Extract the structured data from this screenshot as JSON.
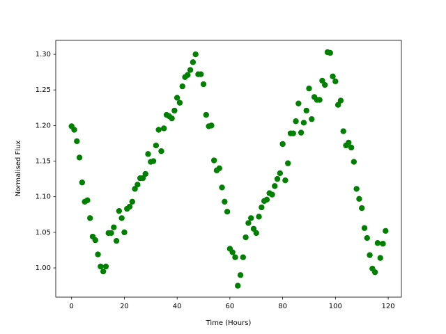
{
  "chart_data": {
    "type": "scatter",
    "xlabel": "Time (Hours)",
    "ylabel": "Normalised Flux",
    "x": [
      0,
      1,
      2,
      3,
      4,
      5,
      6,
      7,
      8,
      9,
      10,
      11,
      12,
      13,
      14,
      15,
      16,
      17,
      18,
      19,
      20,
      21,
      22,
      23,
      24,
      25,
      26,
      27,
      28,
      29,
      30,
      31,
      32,
      33,
      34,
      35,
      36,
      37,
      38,
      39,
      40,
      41,
      42,
      43,
      44,
      45,
      46,
      47,
      48,
      49,
      50,
      51,
      52,
      53,
      54,
      55,
      56,
      57,
      58,
      59,
      60,
      61,
      62,
      63,
      64,
      65,
      66,
      67,
      68,
      69,
      70,
      71,
      72,
      73,
      74,
      75,
      76,
      77,
      78,
      79,
      80,
      81,
      82,
      83,
      84,
      85,
      86,
      87,
      88,
      89,
      90,
      91,
      92,
      93,
      94,
      95,
      96,
      97,
      98,
      99,
      100,
      101,
      102,
      103,
      104,
      105,
      106,
      107,
      108,
      109,
      110,
      111,
      112,
      113,
      114,
      115,
      116,
      117,
      118,
      119
    ],
    "values": [
      1.199,
      1.194,
      1.178,
      1.155,
      1.12,
      1.093,
      1.095,
      1.07,
      1.044,
      1.039,
      1.019,
      1.002,
      0.995,
      1.002,
      1.049,
      1.049,
      1.057,
      1.038,
      1.08,
      1.07,
      1.05,
      1.083,
      1.086,
      1.093,
      1.111,
      1.117,
      1.126,
      1.126,
      1.132,
      1.16,
      1.149,
      1.15,
      1.172,
      1.194,
      1.164,
      1.196,
      1.215,
      1.213,
      1.21,
      1.221,
      1.239,
      1.232,
      1.255,
      1.268,
      1.271,
      1.278,
      1.289,
      1.3,
      1.272,
      1.272,
      1.258,
      1.215,
      1.199,
      1.2,
      1.151,
      1.137,
      1.14,
      1.113,
      1.093,
      1.079,
      1.027,
      1.022,
      1.015,
      0.975,
      0.99,
      1.015,
      1.043,
      1.063,
      1.07,
      1.055,
      1.049,
      1.072,
      1.085,
      1.094,
      1.096,
      1.105,
      1.103,
      1.115,
      1.125,
      1.133,
      1.174,
      1.123,
      1.147,
      1.189,
      1.189,
      1.206,
      1.231,
      1.19,
      1.204,
      1.221,
      1.252,
      1.209,
      1.24,
      1.236,
      1.236,
      1.263,
      1.257,
      1.303,
      1.302,
      1.269,
      1.262,
      1.229,
      1.235,
      1.192,
      1.172,
      1.176,
      1.169,
      1.149,
      1.111,
      1.097,
      1.084,
      1.056,
      1.042,
      1.018,
      0.999,
      0.994,
      1.035,
      1.014,
      1.034,
      1.052
    ],
    "color": "#008000",
    "xlim": [
      -6,
      125
    ],
    "ylim": [
      0.959,
      1.3196
    ],
    "xticks": [
      0,
      20,
      40,
      60,
      80,
      100,
      120
    ],
    "yticks": [
      {
        "value": 1.0,
        "label": "1.00"
      },
      {
        "value": 1.05,
        "label": "1.05"
      },
      {
        "value": 1.1,
        "label": "1.10"
      },
      {
        "value": 1.15,
        "label": "1.15"
      },
      {
        "value": 1.2,
        "label": "1.20"
      },
      {
        "value": 1.25,
        "label": "1.25"
      },
      {
        "value": 1.3,
        "label": "1.30"
      }
    ],
    "grid": false
  }
}
